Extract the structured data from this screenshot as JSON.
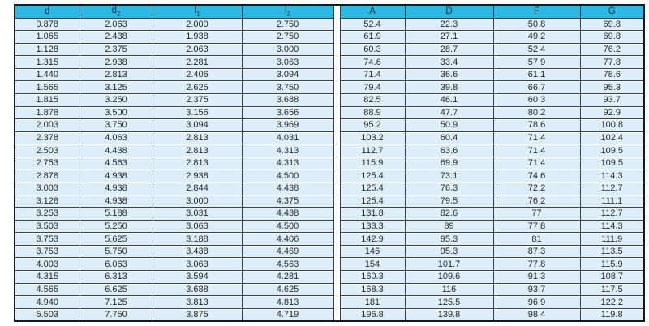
{
  "table": {
    "columns": [
      {
        "label": "d",
        "sub": ""
      },
      {
        "label": "d",
        "sub": "2"
      },
      {
        "label": "l",
        "sub": "1"
      },
      {
        "label": "l",
        "sub": "2"
      },
      {
        "label": "A",
        "sub": ""
      },
      {
        "label": "D",
        "sub": ""
      },
      {
        "label": "F",
        "sub": ""
      },
      {
        "label": "G",
        "sub": ""
      }
    ],
    "rows": [
      [
        "0.878",
        "2.063",
        "2.000",
        "2.750",
        "52.4",
        "22.3",
        "50.8",
        "69.8"
      ],
      [
        "1.065",
        "2.438",
        "1.938",
        "2.750",
        "61.9",
        "27.1",
        "49.2",
        "69.8"
      ],
      [
        "1.128",
        "2.375",
        "2.063",
        "3.000",
        "60.3",
        "28.7",
        "52.4",
        "76.2"
      ],
      [
        "1.315",
        "2.938",
        "2.281",
        "3.063",
        "74.6",
        "33.4",
        "57.9",
        "77.8"
      ],
      [
        "1.440",
        "2.813",
        "2.406",
        "3.094",
        "71.4",
        "36.6",
        "61.1",
        "78.6"
      ],
      [
        "1.565",
        "3.125",
        "2.625",
        "3.750",
        "79.4",
        "39.8",
        "66.7",
        "95.3"
      ],
      [
        "1.815",
        "3.250",
        "2.375",
        "3.688",
        "82.5",
        "46.1",
        "60.3",
        "93.7"
      ],
      [
        "1.878",
        "3.500",
        "3.156",
        "3.656",
        "88.9",
        "47.7",
        "80.2",
        "92.9"
      ],
      [
        "2.003",
        "3.750",
        "3.094",
        "3.969",
        "95.2",
        "50.9",
        "78.6",
        "100.8"
      ],
      [
        "2.378",
        "4.063",
        "2.813",
        "4.031",
        "103.2",
        "60.4",
        "71.4",
        "102.4"
      ],
      [
        "2.503",
        "4.438",
        "2.813",
        "4.313",
        "112.7",
        "63.6",
        "71.4",
        "109.5"
      ],
      [
        "2.753",
        "4.563",
        "2.813",
        "4.313",
        "115.9",
        "69.9",
        "71.4",
        "109.5"
      ],
      [
        "2.878",
        "4.938",
        "2.938",
        "4.500",
        "125.4",
        "73.1",
        "74.6",
        "114.3"
      ],
      [
        "3.003",
        "4.938",
        "2.844",
        "4.438",
        "125.4",
        "76.3",
        "72.2",
        "112.7"
      ],
      [
        "3.128",
        "4.938",
        "3.000",
        "4.375",
        "125.4",
        "79.5",
        "76.2",
        "111.1"
      ],
      [
        "3.253",
        "5.188",
        "3.031",
        "4.438",
        "131.8",
        "82.6",
        "77",
        "112.7"
      ],
      [
        "3.503",
        "5.250",
        "3.063",
        "4.500",
        "133.3",
        "89",
        "77.8",
        "114.3"
      ],
      [
        "3.753",
        "5.625",
        "3.188",
        "4.406",
        "142.9",
        "95.3",
        "81",
        "111.9"
      ],
      [
        "3.753",
        "5.750",
        "3.438",
        "4.469",
        "146",
        "95.3",
        "87.3",
        "113.5"
      ],
      [
        "4.003",
        "6.063",
        "3.063",
        "4.563",
        "154",
        "101.7",
        "77.8",
        "115.9"
      ],
      [
        "4.315",
        "6.313",
        "3.594",
        "4.281",
        "160.3",
        "109.6",
        "91.3",
        "108.7"
      ],
      [
        "4.565",
        "6.625",
        "3.688",
        "4.625",
        "168.3",
        "116",
        "93.7",
        "117.5"
      ],
      [
        "4.940",
        "7.125",
        "3.813",
        "4.813",
        "181",
        "125.5",
        "96.9",
        "122.2"
      ],
      [
        "5.503",
        "7.750",
        "3.875",
        "4.719",
        "196.8",
        "139.8",
        "98.4",
        "119.8"
      ]
    ]
  },
  "colors": {
    "header_background": "#2db8e4",
    "cell_background": "#ddeef8",
    "border": "#3d4247",
    "text": "#27292b"
  }
}
